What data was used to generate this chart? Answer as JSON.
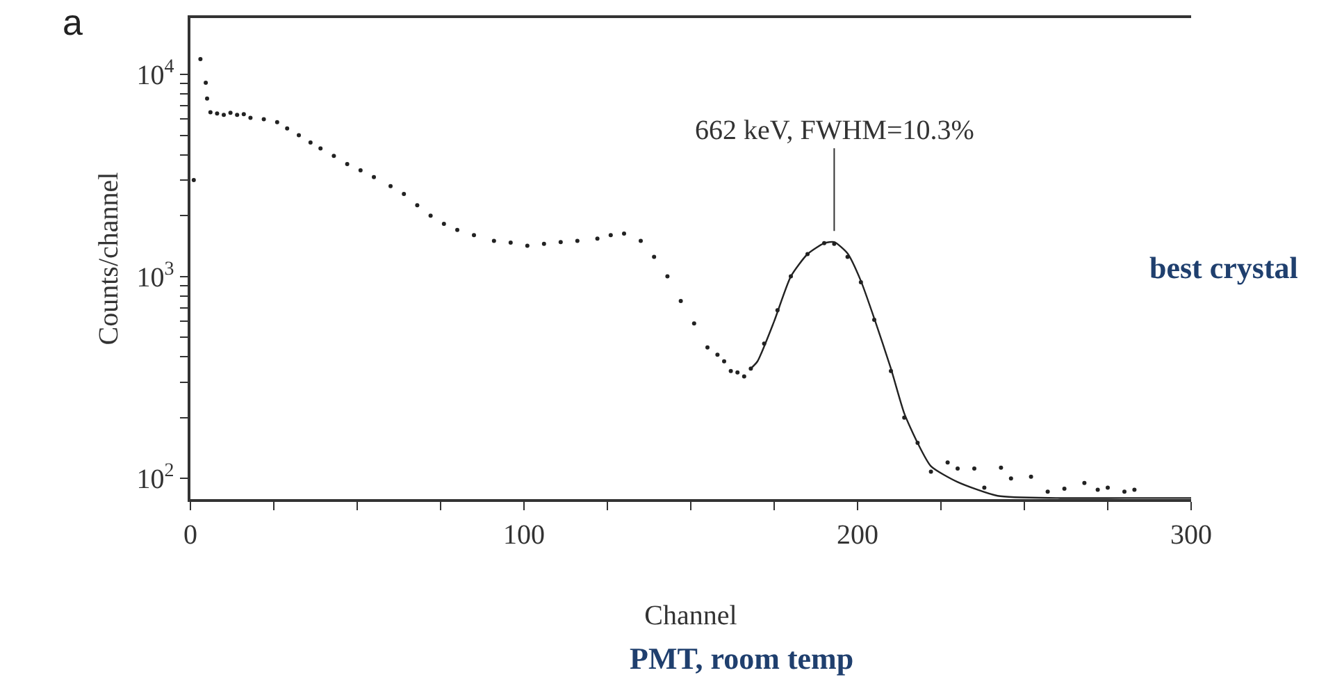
{
  "chart_data": {
    "type": "scatter",
    "xlabel": "Channel",
    "ylabel": "Counts/channel",
    "log": "y",
    "xlim": [
      0,
      300
    ],
    "ylim": [
      79,
      19000
    ],
    "xticks": [
      0,
      {
        "value": 25,
        "label": null
      },
      {
        "value": 50,
        "label": null
      },
      {
        "value": 75,
        "label": null
      },
      100,
      {
        "value": 125,
        "label": null
      },
      {
        "value": 150,
        "label": null
      },
      {
        "value": 175,
        "label": null
      },
      200,
      {
        "value": 225,
        "label": null
      },
      {
        "value": 250,
        "label": null
      },
      {
        "value": 275,
        "label": null
      },
      300
    ],
    "yticks": [
      {
        "value": 100,
        "label": "10$^{2}$"
      },
      {
        "value": 200,
        "label": null
      },
      {
        "value": 300,
        "label": null
      },
      {
        "value": 400,
        "label": null
      },
      {
        "value": 500,
        "label": null
      },
      {
        "value": 600,
        "label": null
      },
      {
        "value": 700,
        "label": null
      },
      {
        "value": 800,
        "label": null
      },
      {
        "value": 900,
        "label": null
      },
      {
        "value": 1000,
        "label": "10$^{3}$"
      },
      {
        "value": 2000,
        "label": null
      },
      {
        "value": 3000,
        "label": null
      },
      {
        "value": 4000,
        "label": null
      },
      {
        "value": 5000,
        "label": null
      },
      {
        "value": 6000,
        "label": null
      },
      {
        "value": 7000,
        "label": null
      },
      {
        "value": 8000,
        "label": null
      },
      {
        "value": 9000,
        "label": null
      },
      {
        "value": 10000,
        "label": "10$^{4}$"
      }
    ],
    "series": [
      {
        "marker": "circle",
        "color": "#222222",
        "x": [
          1,
          3,
          4.6,
          5,
          6,
          8,
          10,
          12,
          14,
          16,
          18,
          22,
          26,
          29,
          32.5,
          36,
          39,
          43,
          47,
          51,
          55,
          60,
          64,
          68,
          72,
          76,
          80,
          85,
          91,
          96,
          101,
          106,
          111,
          116,
          122,
          126,
          130,
          135,
          139,
          143,
          147,
          151,
          155,
          158,
          160,
          162,
          164,
          166,
          168,
          172,
          176,
          180,
          185,
          190,
          193,
          197,
          201,
          205,
          210,
          214,
          218,
          222,
          227,
          230,
          235,
          238,
          243,
          246,
          252,
          257,
          262,
          268,
          272,
          275,
          280,
          283
        ],
        "values": [
          3000,
          11900,
          9100,
          7600,
          6500,
          6400,
          6300,
          6450,
          6300,
          6350,
          6100,
          6000,
          5800,
          5400,
          5000,
          4600,
          4300,
          3950,
          3600,
          3350,
          3100,
          2800,
          2560,
          2250,
          2000,
          1820,
          1700,
          1600,
          1500,
          1470,
          1420,
          1450,
          1480,
          1500,
          1540,
          1600,
          1630,
          1500,
          1250,
          1000,
          755,
          585,
          445,
          410,
          380,
          340,
          335,
          320,
          350,
          465,
          680,
          1000,
          1290,
          1460,
          1450,
          1250,
          935,
          610,
          340,
          200,
          150,
          108,
          120,
          112,
          112,
          90,
          113,
          100,
          102,
          86,
          89,
          95,
          88,
          90,
          86,
          88
        ]
      },
      {
        "type": "line",
        "marker": "none",
        "color": "#222222",
        "x": [
          168,
          170,
          175,
          180,
          185,
          190,
          193,
          197,
          201,
          205,
          210,
          214,
          218,
          222,
          230,
          242,
          260,
          280,
          300
        ],
        "values": [
          350,
          380,
          600,
          1000,
          1290,
          1460,
          1480,
          1300,
          950,
          620,
          350,
          210,
          150,
          115,
          96,
          82,
          80,
          80,
          80
        ]
      }
    ],
    "annotations": [
      "a",
      {
        "text": "662 keV, FWHM=10.3%",
        "x": 193,
        "y": 1480
      },
      "best crystal",
      "PMT, room temp"
    ]
  }
}
